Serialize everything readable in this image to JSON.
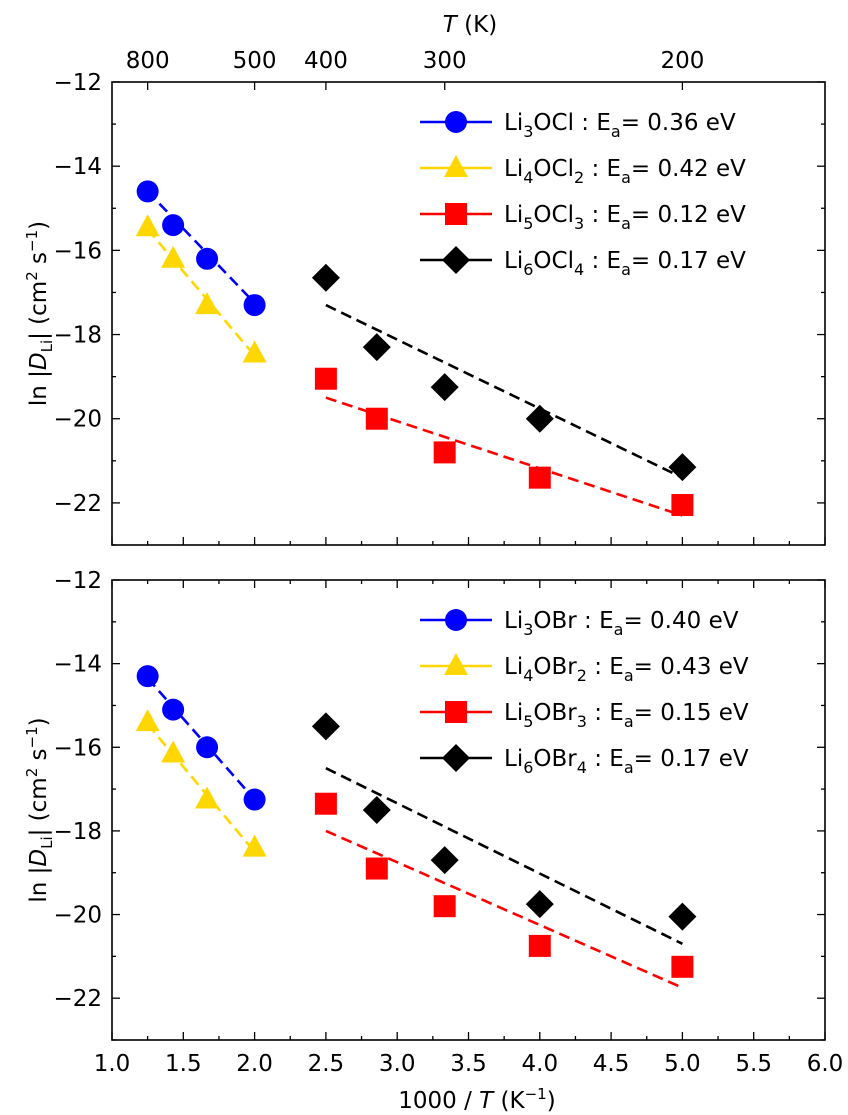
{
  "figure": {
    "top_axis_label": "T (K)",
    "bottom_axis_label": "1000 / T (K⁻¹)"
  },
  "chart_data": [
    {
      "type": "scatter",
      "panel": "top",
      "ylabel": "ln |D_Li| (cm² s⁻¹)",
      "xlim": [
        1.0,
        6.0
      ],
      "ylim": [
        -23,
        -12
      ],
      "x_ticks": [
        "1.0",
        "1.5",
        "2.0",
        "2.5",
        "3.0",
        "3.5",
        "4.0",
        "4.5",
        "5.0",
        "5.5",
        "6.0"
      ],
      "y_ticks": [
        "−12",
        "−14",
        "−16",
        "−18",
        "−20",
        "−22"
      ],
      "top_axis": {
        "label": "T (K)",
        "ticks": [
          "800",
          "500",
          "400",
          "300",
          "200"
        ]
      },
      "grid": false,
      "legend_position": "top-right",
      "series": [
        {
          "name": "Li3OCl : Ea= 0.36 eV",
          "color": "#0000ff",
          "marker": "circle",
          "x": [
            1.25,
            1.4286,
            1.6667,
            2.0
          ],
          "y": [
            -14.6,
            -15.4,
            -16.2,
            -17.3
          ],
          "fit_x": [
            1.25,
            2.0
          ],
          "fit_y": [
            -14.6,
            -17.25
          ]
        },
        {
          "name": "Li4OCl2 : Ea= 0.42 eV",
          "color": "#ffd700",
          "marker": "triangle",
          "x": [
            1.25,
            1.4286,
            1.6667,
            2.0
          ],
          "y": [
            -15.45,
            -16.2,
            -17.3,
            -18.45
          ],
          "fit_x": [
            1.25,
            2.0
          ],
          "fit_y": [
            -15.5,
            -18.5
          ]
        },
        {
          "name": "Li5OCl3 : Ea= 0.12 eV",
          "color": "#ff0000",
          "marker": "square",
          "x": [
            2.5,
            2.857,
            3.333,
            4.0,
            5.0
          ],
          "y": [
            -19.05,
            -20.0,
            -20.8,
            -21.4,
            -22.05
          ],
          "fit_x": [
            2.5,
            5.0
          ],
          "fit_y": [
            -19.5,
            -22.3
          ]
        },
        {
          "name": "Li6OCl4 : Ea= 0.17 eV",
          "color": "#000000",
          "marker": "diamond",
          "x": [
            2.5,
            2.857,
            3.333,
            4.0,
            5.0
          ],
          "y": [
            -16.65,
            -18.3,
            -19.25,
            -20.0,
            -21.15
          ],
          "fit_x": [
            2.5,
            5.0
          ],
          "fit_y": [
            -17.3,
            -21.4
          ]
        }
      ]
    },
    {
      "type": "scatter",
      "panel": "bottom",
      "ylabel": "ln |D_Li| (cm² s⁻¹)",
      "xlabel": "1000 / T (K⁻¹)",
      "xlim": [
        1.0,
        6.0
      ],
      "ylim": [
        -23,
        -12
      ],
      "x_ticks": [
        "1.0",
        "1.5",
        "2.0",
        "2.5",
        "3.0",
        "3.5",
        "4.0",
        "4.5",
        "5.0",
        "5.5",
        "6.0"
      ],
      "y_ticks": [
        "−12",
        "−14",
        "−16",
        "−18",
        "−20",
        "−22"
      ],
      "grid": false,
      "legend_position": "top-right",
      "series": [
        {
          "name": "Li3OBr : Ea= 0.40 eV",
          "color": "#0000ff",
          "marker": "circle",
          "x": [
            1.25,
            1.4286,
            1.6667,
            2.0
          ],
          "y": [
            -14.3,
            -15.1,
            -16.0,
            -17.25
          ],
          "fit_x": [
            1.25,
            2.0
          ],
          "fit_y": [
            -14.35,
            -17.25
          ]
        },
        {
          "name": "Li4OBr2 : Ea= 0.43 eV",
          "color": "#ffd700",
          "marker": "triangle",
          "x": [
            1.25,
            1.4286,
            1.6667,
            2.0
          ],
          "y": [
            -15.4,
            -16.15,
            -17.25,
            -18.4
          ],
          "fit_x": [
            1.25,
            2.0
          ],
          "fit_y": [
            -15.45,
            -18.5
          ]
        },
        {
          "name": "Li5OBr3 : Ea= 0.15 eV",
          "color": "#ff0000",
          "marker": "square",
          "x": [
            2.5,
            2.857,
            3.333,
            4.0,
            5.0
          ],
          "y": [
            -17.35,
            -18.9,
            -19.8,
            -20.75,
            -21.25
          ],
          "fit_x": [
            2.5,
            5.0
          ],
          "fit_y": [
            -18.0,
            -21.75
          ]
        },
        {
          "name": "Li6OBr4 : Ea= 0.17 eV",
          "color": "#000000",
          "marker": "diamond",
          "x": [
            2.5,
            2.857,
            3.333,
            4.0,
            5.0
          ],
          "y": [
            -15.5,
            -17.5,
            -18.7,
            -19.75,
            -20.05
          ],
          "fit_x": [
            2.5,
            5.0
          ],
          "fit_y": [
            -16.5,
            -20.7
          ]
        }
      ]
    }
  ],
  "legend_labels": {
    "top": [
      {
        "base": "Li",
        "sub1": "3",
        "mid": "OCl",
        "sub2": "",
        "pad": "  ",
        "ea": "0.36 eV"
      },
      {
        "base": "Li",
        "sub1": "4",
        "mid": "OCl",
        "sub2": "2",
        "pad": " ",
        "ea": "0.42 eV"
      },
      {
        "base": "Li",
        "sub1": "5",
        "mid": "OCl",
        "sub2": "3",
        "pad": " ",
        "ea": "0.12 eV"
      },
      {
        "base": "Li",
        "sub1": "6",
        "mid": "OCl",
        "sub2": "4",
        "pad": " ",
        "ea": "0.17 eV"
      }
    ],
    "bottom": [
      {
        "base": "Li",
        "sub1": "3",
        "mid": "OBr",
        "sub2": "",
        "pad": "  ",
        "ea": "0.40 eV"
      },
      {
        "base": "Li",
        "sub1": "4",
        "mid": "OBr",
        "sub2": "2",
        "pad": " ",
        "ea": "0.43 eV"
      },
      {
        "base": "Li",
        "sub1": "5",
        "mid": "OBr",
        "sub2": "3",
        "pad": " ",
        "ea": "0.15 eV"
      },
      {
        "base": "Li",
        "sub1": "6",
        "mid": "OBr",
        "sub2": "4",
        "pad": " ",
        "ea": "0.17 eV"
      }
    ]
  }
}
